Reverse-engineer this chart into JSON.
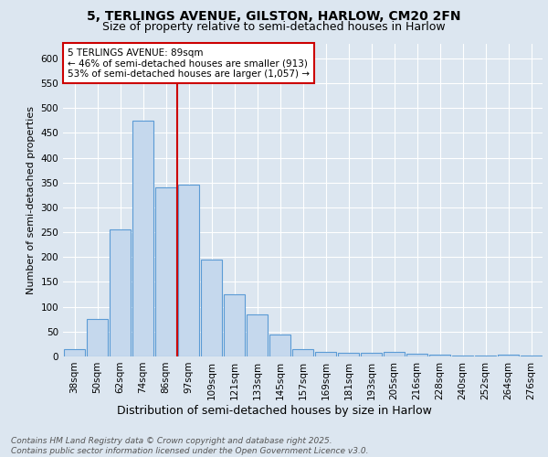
{
  "title1": "5, TERLINGS AVENUE, GILSTON, HARLOW, CM20 2FN",
  "title2": "Size of property relative to semi-detached houses in Harlow",
  "xlabel": "Distribution of semi-detached houses by size in Harlow",
  "ylabel": "Number of semi-detached properties",
  "categories": [
    "38sqm",
    "50sqm",
    "62sqm",
    "74sqm",
    "86sqm",
    "97sqm",
    "109sqm",
    "121sqm",
    "133sqm",
    "145sqm",
    "157sqm",
    "169sqm",
    "181sqm",
    "193sqm",
    "205sqm",
    "216sqm",
    "228sqm",
    "240sqm",
    "252sqm",
    "264sqm",
    "276sqm"
  ],
  "values": [
    15,
    75,
    255,
    475,
    340,
    345,
    195,
    125,
    85,
    45,
    15,
    10,
    7,
    8,
    10,
    6,
    3,
    2,
    1,
    3,
    2
  ],
  "bar_color": "#c5d8ed",
  "bar_edge_color": "#5b9bd5",
  "bar_edge_width": 0.8,
  "vline_x": 4.5,
  "vline_color": "#cc0000",
  "annotation_text": "5 TERLINGS AVENUE: 89sqm\n← 46% of semi-detached houses are smaller (913)\n53% of semi-detached houses are larger (1,057) →",
  "annotation_box_color": "#ffffff",
  "annotation_box_edge_color": "#cc0000",
  "background_color": "#dce6f0",
  "plot_bg_color": "#dce6f0",
  "ylim": [
    0,
    630
  ],
  "yticks": [
    0,
    50,
    100,
    150,
    200,
    250,
    300,
    350,
    400,
    450,
    500,
    550,
    600
  ],
  "footer_text": "Contains HM Land Registry data © Crown copyright and database right 2025.\nContains public sector information licensed under the Open Government Licence v3.0.",
  "title1_fontsize": 10,
  "title2_fontsize": 9,
  "xlabel_fontsize": 9,
  "ylabel_fontsize": 8,
  "tick_fontsize": 7.5,
  "annotation_fontsize": 7.5,
  "footer_fontsize": 6.5
}
